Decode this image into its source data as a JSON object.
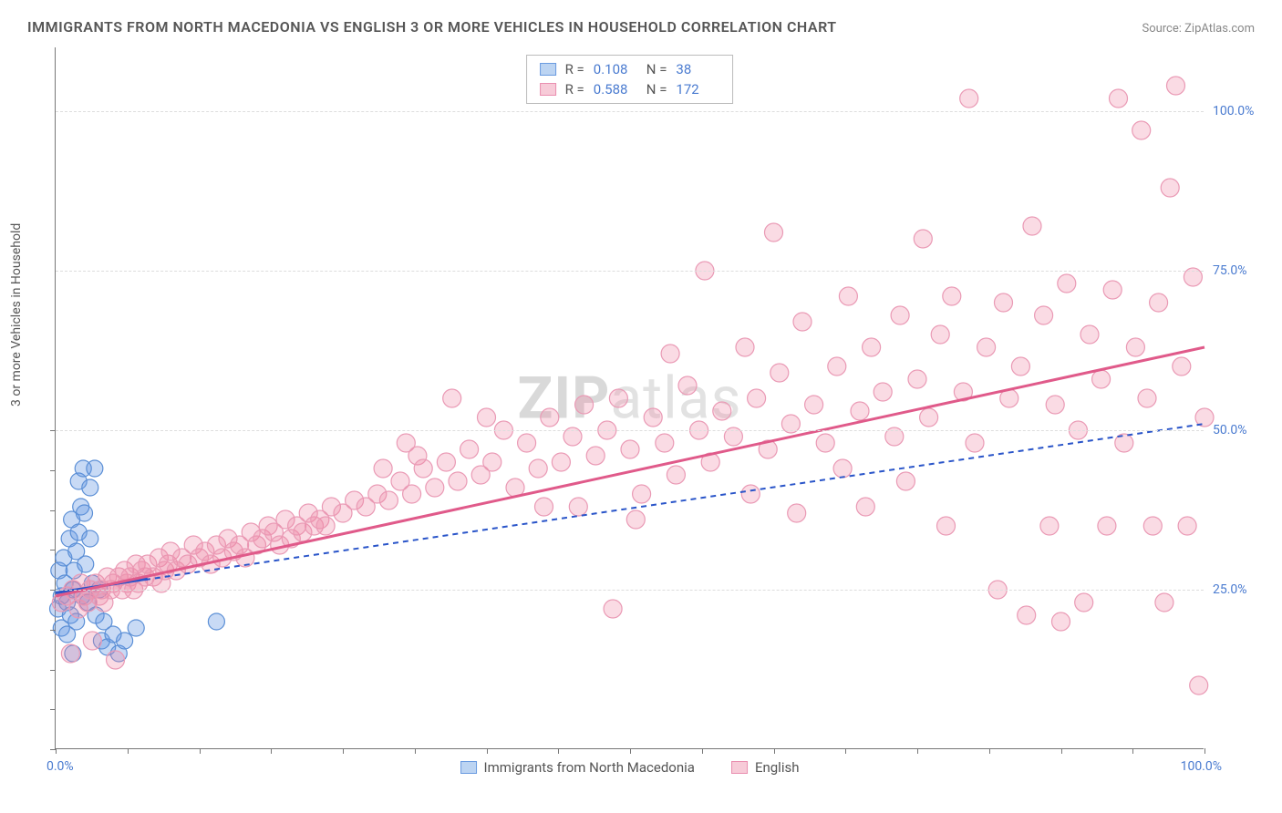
{
  "title": "IMMIGRANTS FROM NORTH MACEDONIA VS ENGLISH 3 OR MORE VEHICLES IN HOUSEHOLD CORRELATION CHART",
  "source": "Source: ZipAtlas.com",
  "watermark_a": "ZIP",
  "watermark_b": "atlas",
  "y_axis_title": "3 or more Vehicles in Household",
  "chart": {
    "type": "scatter-correlation",
    "xlim": [
      0,
      100
    ],
    "ylim": [
      0,
      110
    ],
    "x_origin_label": "0.0%",
    "x_max_label": "100.0%",
    "y_gridlines": [
      {
        "value": 25,
        "label": "25.0%"
      },
      {
        "value": 50,
        "label": "50.0%"
      },
      {
        "value": 75,
        "label": "75.0%"
      },
      {
        "value": 100,
        "label": "100.0%"
      }
    ],
    "x_minor_ticks": [
      0,
      6.25,
      12.5,
      18.75,
      25,
      31.25,
      37.5,
      43.75,
      50,
      56.25,
      62.5,
      68.75,
      75,
      81.25,
      87.5,
      93.75,
      100
    ],
    "y_minor_ticks": [
      0,
      6.25,
      12.5,
      18.75,
      25,
      31.25,
      37.5,
      43.75,
      50
    ],
    "series": [
      {
        "id": "blue",
        "legend_label": "Immigrants from North Macedonia",
        "R": "0.108",
        "N": "38",
        "marker_fill": "rgba(96,150,225,0.35)",
        "marker_stroke": "#5b8fd6",
        "swatch_fill": "#bcd4f2",
        "swatch_border": "#6a9be0",
        "marker_r": 9,
        "trend_color": "#2a55c9",
        "trend_dash": "6 5",
        "trend_width": 2,
        "trend": {
          "x1": 0,
          "y1": 24.5,
          "x2": 100,
          "y2": 51
        },
        "solid_segment": {
          "x1": 0,
          "y1": 24.5,
          "x2": 8,
          "y2": 26.7,
          "width": 3
        },
        "points": [
          [
            0.2,
            22
          ],
          [
            0.3,
            28
          ],
          [
            0.5,
            24
          ],
          [
            0.5,
            19
          ],
          [
            0.7,
            30
          ],
          [
            0.8,
            26
          ],
          [
            1.0,
            23
          ],
          [
            1.0,
            18
          ],
          [
            1.2,
            33
          ],
          [
            1.3,
            21
          ],
          [
            1.4,
            36
          ],
          [
            1.5,
            25
          ],
          [
            1.5,
            15
          ],
          [
            1.6,
            28
          ],
          [
            1.8,
            31
          ],
          [
            1.8,
            20
          ],
          [
            2.0,
            42
          ],
          [
            2.0,
            34
          ],
          [
            2.2,
            38
          ],
          [
            2.3,
            24
          ],
          [
            2.4,
            44
          ],
          [
            2.5,
            37
          ],
          [
            2.6,
            29
          ],
          [
            2.8,
            23
          ],
          [
            3.0,
            41
          ],
          [
            3.0,
            33
          ],
          [
            3.2,
            26
          ],
          [
            3.4,
            44
          ],
          [
            3.5,
            21
          ],
          [
            3.8,
            25
          ],
          [
            4.0,
            17
          ],
          [
            4.2,
            20
          ],
          [
            4.5,
            16
          ],
          [
            5.0,
            18
          ],
          [
            5.5,
            15
          ],
          [
            6.0,
            17
          ],
          [
            7.0,
            19
          ],
          [
            14.0,
            20
          ]
        ]
      },
      {
        "id": "pink",
        "legend_label": "English",
        "R": "0.588",
        "N": "172",
        "marker_fill": "rgba(240,135,165,0.30)",
        "marker_stroke": "#ea9ab5",
        "swatch_fill": "#f7cbd8",
        "swatch_border": "#ea8fb0",
        "marker_r": 10,
        "trend_color": "#e05a8a",
        "trend_dash": "none",
        "trend_width": 3,
        "trend": {
          "x1": 0,
          "y1": 24,
          "x2": 100,
          "y2": 63
        },
        "points": [
          [
            0.5,
            23
          ],
          [
            1.0,
            24
          ],
          [
            1.3,
            15
          ],
          [
            1.5,
            25
          ],
          [
            2.0,
            22
          ],
          [
            2.2,
            26
          ],
          [
            2.5,
            24
          ],
          [
            2.8,
            23
          ],
          [
            3.0,
            25
          ],
          [
            3.2,
            17
          ],
          [
            3.5,
            26
          ],
          [
            3.8,
            24
          ],
          [
            4.0,
            25
          ],
          [
            4.2,
            23
          ],
          [
            4.5,
            27
          ],
          [
            4.8,
            25
          ],
          [
            5.0,
            26
          ],
          [
            5.2,
            14
          ],
          [
            5.5,
            27
          ],
          [
            5.8,
            25
          ],
          [
            6.0,
            28
          ],
          [
            6.2,
            26
          ],
          [
            6.5,
            27
          ],
          [
            6.8,
            25
          ],
          [
            7.0,
            29
          ],
          [
            7.2,
            26
          ],
          [
            7.5,
            28
          ],
          [
            7.8,
            27
          ],
          [
            8.0,
            29
          ],
          [
            8.5,
            27
          ],
          [
            9.0,
            30
          ],
          [
            9.2,
            26
          ],
          [
            9.5,
            28
          ],
          [
            9.8,
            29
          ],
          [
            10.0,
            31
          ],
          [
            10.5,
            28
          ],
          [
            11.0,
            30
          ],
          [
            11.5,
            29
          ],
          [
            12.0,
            32
          ],
          [
            12.5,
            30
          ],
          [
            13.0,
            31
          ],
          [
            13.5,
            29
          ],
          [
            14.0,
            32
          ],
          [
            14.5,
            30
          ],
          [
            15.0,
            33
          ],
          [
            15.5,
            31
          ],
          [
            16.0,
            32
          ],
          [
            16.5,
            30
          ],
          [
            17.0,
            34
          ],
          [
            17.5,
            32
          ],
          [
            18.0,
            33
          ],
          [
            18.5,
            35
          ],
          [
            19.0,
            34
          ],
          [
            19.5,
            32
          ],
          [
            20.0,
            36
          ],
          [
            20.5,
            33
          ],
          [
            21.0,
            35
          ],
          [
            21.5,
            34
          ],
          [
            22.0,
            37
          ],
          [
            22.5,
            35
          ],
          [
            23.0,
            36
          ],
          [
            23.5,
            35
          ],
          [
            24.0,
            38
          ],
          [
            25.0,
            37
          ],
          [
            26.0,
            39
          ],
          [
            27.0,
            38
          ],
          [
            28.0,
            40
          ],
          [
            28.5,
            44
          ],
          [
            29.0,
            39
          ],
          [
            30.0,
            42
          ],
          [
            30.5,
            48
          ],
          [
            31.0,
            40
          ],
          [
            31.5,
            46
          ],
          [
            32.0,
            44
          ],
          [
            33.0,
            41
          ],
          [
            34.0,
            45
          ],
          [
            34.5,
            55
          ],
          [
            35.0,
            42
          ],
          [
            36.0,
            47
          ],
          [
            37.0,
            43
          ],
          [
            37.5,
            52
          ],
          [
            38.0,
            45
          ],
          [
            39.0,
            50
          ],
          [
            40.0,
            41
          ],
          [
            41.0,
            48
          ],
          [
            42.0,
            44
          ],
          [
            42.5,
            38
          ],
          [
            43.0,
            52
          ],
          [
            44.0,
            45
          ],
          [
            45.0,
            49
          ],
          [
            45.5,
            38
          ],
          [
            46.0,
            54
          ],
          [
            47.0,
            46
          ],
          [
            48.0,
            50
          ],
          [
            48.5,
            22
          ],
          [
            49.0,
            55
          ],
          [
            50.0,
            47
          ],
          [
            50.5,
            36
          ],
          [
            51.0,
            40
          ],
          [
            52.0,
            52
          ],
          [
            53.0,
            48
          ],
          [
            53.5,
            62
          ],
          [
            54.0,
            43
          ],
          [
            55.0,
            57
          ],
          [
            56.0,
            50
          ],
          [
            56.5,
            75
          ],
          [
            57.0,
            45
          ],
          [
            58.0,
            53
          ],
          [
            59.0,
            49
          ],
          [
            60.0,
            63
          ],
          [
            60.5,
            40
          ],
          [
            61.0,
            55
          ],
          [
            62.0,
            47
          ],
          [
            62.5,
            81
          ],
          [
            63.0,
            59
          ],
          [
            64.0,
            51
          ],
          [
            64.5,
            37
          ],
          [
            65.0,
            67
          ],
          [
            66.0,
            54
          ],
          [
            67.0,
            48
          ],
          [
            68.0,
            60
          ],
          [
            68.5,
            44
          ],
          [
            69.0,
            71
          ],
          [
            70.0,
            53
          ],
          [
            70.5,
            38
          ],
          [
            71.0,
            63
          ],
          [
            72.0,
            56
          ],
          [
            73.0,
            49
          ],
          [
            73.5,
            68
          ],
          [
            74.0,
            42
          ],
          [
            75.0,
            58
          ],
          [
            75.5,
            80
          ],
          [
            76.0,
            52
          ],
          [
            77.0,
            65
          ],
          [
            77.5,
            35
          ],
          [
            78.0,
            71
          ],
          [
            79.0,
            56
          ],
          [
            79.5,
            102
          ],
          [
            80.0,
            48
          ],
          [
            81.0,
            63
          ],
          [
            82.0,
            25
          ],
          [
            82.5,
            70
          ],
          [
            83.0,
            55
          ],
          [
            84.0,
            60
          ],
          [
            84.5,
            21
          ],
          [
            85.0,
            82
          ],
          [
            86.0,
            68
          ],
          [
            86.5,
            35
          ],
          [
            87.0,
            54
          ],
          [
            87.5,
            20
          ],
          [
            88.0,
            73
          ],
          [
            89.0,
            50
          ],
          [
            89.5,
            23
          ],
          [
            90.0,
            65
          ],
          [
            91.0,
            58
          ],
          [
            91.5,
            35
          ],
          [
            92.0,
            72
          ],
          [
            92.5,
            102
          ],
          [
            93.0,
            48
          ],
          [
            94.0,
            63
          ],
          [
            94.5,
            97
          ],
          [
            95.0,
            55
          ],
          [
            95.5,
            35
          ],
          [
            96.0,
            70
          ],
          [
            96.5,
            23
          ],
          [
            97.0,
            88
          ],
          [
            97.5,
            104
          ],
          [
            98.0,
            60
          ],
          [
            98.5,
            35
          ],
          [
            99.0,
            74
          ],
          [
            99.5,
            10
          ],
          [
            100.0,
            52
          ]
        ]
      }
    ]
  },
  "labels": {
    "R_prefix": "R =",
    "N_prefix": "N ="
  }
}
